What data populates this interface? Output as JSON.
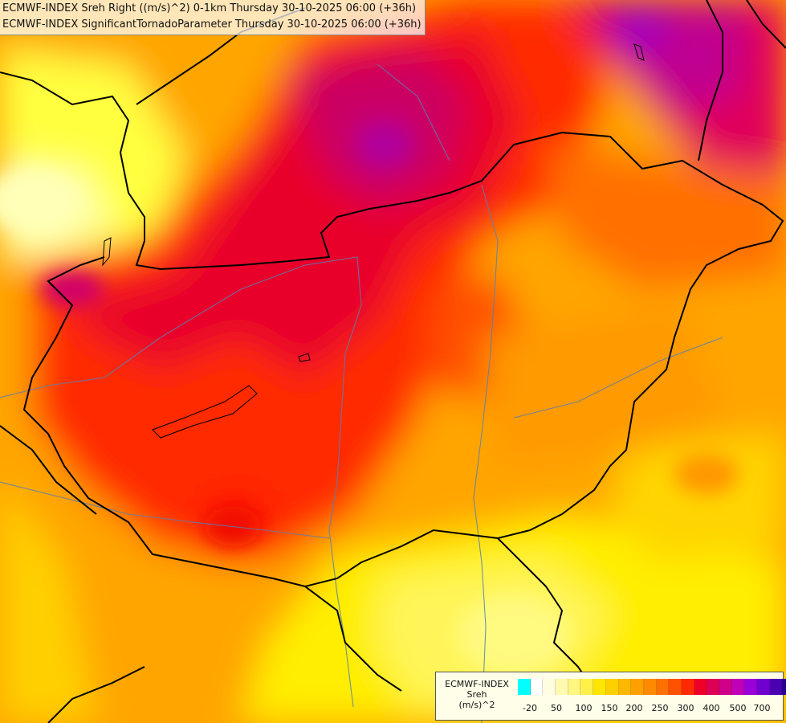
{
  "header": {
    "line1": "ECMWF-INDEX Sreh Right ((m/s)^2) 0-1km Thursday 30-10-2025 06:00 (+36h)",
    "line2": "ECMWF-INDEX SignificantTornadoParameter Thursday 30-10-2025 06:00 (+36h)"
  },
  "legend": {
    "title_line1": "ECMWF-INDEX",
    "title_line2": "Sreh",
    "title_line3": "(m/s)^2",
    "colors": [
      "#00ffff",
      "#ffffff",
      "#fffde0",
      "#fffab0",
      "#fff680",
      "#fff04a",
      "#ffe600",
      "#ffd000",
      "#ffb800",
      "#ffa000",
      "#ff8a00",
      "#ff7000",
      "#ff5200",
      "#ff2a00",
      "#ee0028",
      "#dd0055",
      "#d0008a",
      "#c000b8",
      "#9a00d8",
      "#7000d0",
      "#4a00b0",
      "#2a0090",
      "#0a0070"
    ],
    "tick_labels": [
      "-20",
      "50",
      "100",
      "150",
      "200",
      "250",
      "300",
      "400",
      "500",
      "700"
    ]
  }
}
